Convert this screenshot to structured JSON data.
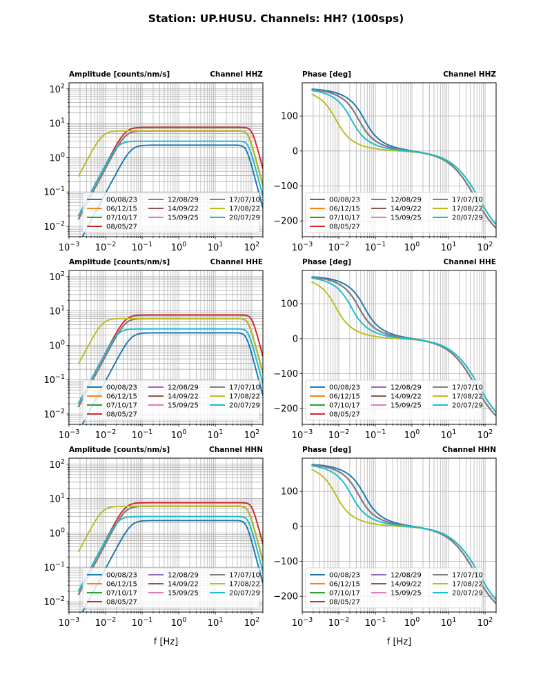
{
  "figure": {
    "title": "Station: UP.HUSU. Channels: HH? (100sps)"
  },
  "chart_data": [
    {
      "type": "line",
      "panel": "amplitude",
      "channel": "HHZ",
      "title_left": "Amplitude [counts/nm/s]",
      "title_right": "Channel HHZ",
      "xlabel": "",
      "xscale": "log",
      "yscale": "log",
      "xlim": [
        0.001,
        200
      ],
      "ylim": [
        0.005,
        150
      ],
      "xticks": [
        "10^-3",
        "10^-2",
        "10^-1",
        "10^0",
        "10^1",
        "10^2"
      ],
      "yticks": [
        "10^-2",
        "10^-1",
        "10^0",
        "10^1",
        "10^2"
      ],
      "grid": "major and minor",
      "legend": {
        "placement": "lower-center",
        "ncol": 3
      }
    },
    {
      "type": "line",
      "panel": "phase",
      "channel": "HHZ",
      "title_left": "Phase [deg]",
      "title_right": "Channel HHZ",
      "xlabel": "",
      "xscale": "log",
      "yscale": "linear",
      "xlim": [
        0.001,
        200
      ],
      "ylim": [
        -245,
        195
      ],
      "xticks": [
        "10^-3",
        "10^-2",
        "10^-1",
        "10^0",
        "10^1",
        "10^2"
      ],
      "yticks": [
        -200,
        -100,
        0,
        100
      ],
      "grid": "major and minor x, major y",
      "legend": {
        "placement": "lower-center",
        "ncol": 3
      }
    },
    {
      "type": "line",
      "panel": "amplitude",
      "channel": "HHE",
      "title_left": "Amplitude [counts/nm/s]",
      "title_right": "Channel HHE",
      "xlabel": "",
      "xscale": "log",
      "yscale": "log",
      "xlim": [
        0.001,
        200
      ],
      "ylim": [
        0.005,
        150
      ],
      "xticks": [
        "10^-3",
        "10^-2",
        "10^-1",
        "10^0",
        "10^1",
        "10^2"
      ],
      "yticks": [
        "10^-2",
        "10^-1",
        "10^0",
        "10^1",
        "10^2"
      ],
      "grid": "major and minor",
      "legend": {
        "placement": "lower-center",
        "ncol": 3
      }
    },
    {
      "type": "line",
      "panel": "phase",
      "channel": "HHE",
      "title_left": "Phase [deg]",
      "title_right": "Channel HHE",
      "xlabel": "",
      "xscale": "log",
      "yscale": "linear",
      "xlim": [
        0.001,
        200
      ],
      "ylim": [
        -245,
        195
      ],
      "xticks": [
        "10^-3",
        "10^-2",
        "10^-1",
        "10^0",
        "10^1",
        "10^2"
      ],
      "yticks": [
        -200,
        -100,
        0,
        100
      ],
      "grid": "major and minor x, major y",
      "legend": {
        "placement": "lower-center",
        "ncol": 3
      }
    },
    {
      "type": "line",
      "panel": "amplitude",
      "channel": "HHN",
      "title_left": "Amplitude [counts/nm/s]",
      "title_right": "Channel HHN",
      "xlabel": "f [Hz]",
      "xscale": "log",
      "yscale": "log",
      "xlim": [
        0.001,
        200
      ],
      "ylim": [
        0.005,
        150
      ],
      "xticks": [
        "10^-3",
        "10^-2",
        "10^-1",
        "10^0",
        "10^1",
        "10^2"
      ],
      "yticks": [
        "10^-2",
        "10^-1",
        "10^0",
        "10^1",
        "10^2"
      ],
      "grid": "major and minor",
      "legend": {
        "placement": "lower-center",
        "ncol": 3
      }
    },
    {
      "type": "line",
      "panel": "phase",
      "channel": "HHN",
      "title_left": "Phase [deg]",
      "title_right": "Channel HHN",
      "xlabel": "f [Hz]",
      "xscale": "log",
      "yscale": "linear",
      "xlim": [
        0.001,
        200
      ],
      "ylim": [
        -245,
        195
      ],
      "xticks": [
        "10^-3",
        "10^-2",
        "10^-1",
        "10^0",
        "10^1",
        "10^2"
      ],
      "yticks": [
        -200,
        -100,
        0,
        100
      ],
      "grid": "major and minor x, major y",
      "legend": {
        "placement": "lower-center",
        "ncol": 3
      }
    }
  ],
  "series": [
    {
      "name": "00/08/23",
      "color": "#1f77b4",
      "amp_plateau": 2.3,
      "corner_low_hz": 0.05,
      "corner_high_hz": 70,
      "phase_model": "120s"
    },
    {
      "name": "06/12/15",
      "color": "#ff7f0e",
      "amp_plateau": 6.0,
      "corner_low_hz": 0.035,
      "corner_high_hz": 80,
      "phase_model": "120s"
    },
    {
      "name": "07/10/17",
      "color": "#2ca02c",
      "amp_plateau": 6.0,
      "corner_low_hz": 0.035,
      "corner_high_hz": 80,
      "phase_model": "120s"
    },
    {
      "name": "08/05/27",
      "color": "#d62728",
      "amp_plateau": 7.6,
      "corner_low_hz": 0.035,
      "corner_high_hz": 100,
      "phase_model": "120s"
    },
    {
      "name": "12/08/29",
      "color": "#9467bd",
      "amp_plateau": 6.0,
      "corner_low_hz": 0.035,
      "corner_high_hz": 80,
      "phase_model": "120s"
    },
    {
      "name": "14/09/22",
      "color": "#8c564b",
      "amp_plateau": 6.0,
      "corner_low_hz": 0.035,
      "corner_high_hz": 80,
      "phase_model": "120s"
    },
    {
      "name": "15/09/25",
      "color": "#e377c2",
      "amp_plateau": 6.0,
      "corner_low_hz": 0.035,
      "corner_high_hz": 80,
      "phase_model": "120s"
    },
    {
      "name": "17/07/10",
      "color": "#7f7f7f",
      "amp_plateau": 6.0,
      "corner_low_hz": 0.035,
      "corner_high_hz": 80,
      "phase_model": "120s"
    },
    {
      "name": "17/08/22",
      "color": "#bcbd22",
      "amp_plateau": 6.0,
      "corner_low_hz": 0.0083,
      "corner_high_hz": 80,
      "phase_model": "360s"
    },
    {
      "name": "20/07/29",
      "color": "#17becf",
      "amp_plateau": 3.0,
      "corner_low_hz": 0.022,
      "corner_high_hz": 80,
      "phase_model": "240s"
    }
  ]
}
